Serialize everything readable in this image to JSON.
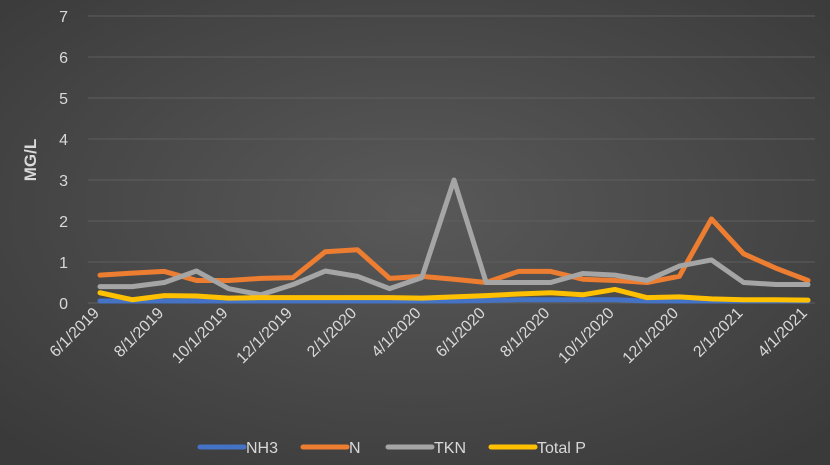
{
  "chart_data": {
    "type": "line",
    "ylabel": "MG/L",
    "categories": [
      "6/1/2019",
      null,
      "8/1/2019",
      null,
      "10/1/2019",
      null,
      "12/1/2019",
      null,
      "2/1/2020",
      null,
      "4/1/2020",
      null,
      "6/1/2020",
      null,
      "8/1/2020",
      null,
      "10/1/2020",
      null,
      "12/1/2020",
      null,
      "2/1/2021",
      null,
      "4/1/2021"
    ],
    "series": [
      {
        "name": "NH3",
        "color": "#4472c4",
        "values": [
          0.05,
          0.05,
          0.05,
          0.05,
          0.05,
          0.05,
          0.05,
          0.05,
          0.05,
          0.05,
          0.05,
          0.05,
          0.06,
          0.08,
          0.08,
          0.08,
          0.08,
          0.05,
          0.05,
          0.05,
          0.05,
          0.05,
          0.05
        ]
      },
      {
        "name": "N",
        "color": "#ed7d31",
        "values": [
          0.68,
          0.73,
          0.77,
          0.55,
          0.55,
          0.6,
          0.62,
          1.25,
          1.3,
          0.6,
          0.65,
          0.58,
          0.5,
          0.77,
          0.77,
          0.58,
          0.55,
          0.5,
          0.65,
          2.05,
          1.2,
          0.85,
          0.55
        ]
      },
      {
        "name": "TKN",
        "color": "#a5a5a5",
        "values": [
          0.4,
          0.4,
          0.5,
          0.78,
          0.35,
          0.2,
          0.45,
          0.78,
          0.65,
          0.35,
          0.62,
          3.0,
          0.5,
          0.5,
          0.5,
          0.72,
          0.68,
          0.55,
          0.9,
          1.05,
          0.5,
          0.45,
          0.45
        ]
      },
      {
        "name": "Total P",
        "color": "#ffc000",
        "values": [
          0.25,
          0.08,
          0.18,
          0.17,
          0.12,
          0.13,
          0.13,
          0.13,
          0.13,
          0.13,
          0.12,
          0.15,
          0.18,
          0.22,
          0.25,
          0.2,
          0.33,
          0.13,
          0.15,
          0.1,
          0.08,
          0.08,
          0.07
        ]
      }
    ],
    "ylim": [
      0,
      7
    ],
    "yticks": [
      0,
      1,
      2,
      3,
      4,
      5,
      6,
      7
    ],
    "grid": true,
    "legend": "bottom"
  }
}
